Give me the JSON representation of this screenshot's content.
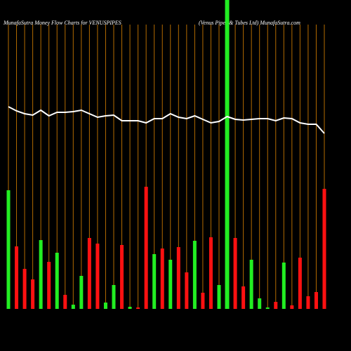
{
  "chart_data": {
    "type": "bar",
    "title": "MunafaSutra  Money Flow  Charts for VENUSPIPES",
    "subtitle": "(Venus Pipes & Tubes Ltd) MunafaSutra.com",
    "guide_color": "#b36b00",
    "values": [
      169,
      89,
      57,
      42,
      98,
      67,
      80,
      20,
      6,
      47,
      101,
      93,
      9,
      34,
      91,
      3,
      2,
      174,
      78,
      86,
      70,
      88,
      52,
      97,
      23,
      102,
      34,
      440,
      101,
      32,
      70,
      15,
      2,
      10,
      66,
      5,
      73,
      18,
      24,
      171
    ],
    "colors": [
      "#22ee22",
      "#ff1111",
      "#ff1111",
      "#ff1111",
      "#22ee22",
      "#ff1111",
      "#22ee22",
      "#ff1111",
      "#22ee22",
      "#22ee22",
      "#ff1111",
      "#ff1111",
      "#22ee22",
      "#22ee22",
      "#ff1111",
      "#22ee22",
      "#ff1111",
      "#ff1111",
      "#22ee22",
      "#ff1111",
      "#22ee22",
      "#ff1111",
      "#ff1111",
      "#22ee22",
      "#ff1111",
      "#ff1111",
      "#22ee22",
      "#22ee22",
      "#ff1111",
      "#ff1111",
      "#22ee22",
      "#22ee22",
      "#22ee22",
      "#ff1111",
      "#22ee22",
      "#ff1111",
      "#ff1111",
      "#ff1111",
      "#ff1111",
      "#ff1111"
    ],
    "line_color": "#ffffff",
    "line_values": [
      288,
      282,
      278,
      276,
      283,
      275,
      280,
      280,
      281,
      283,
      278,
      273,
      275,
      276,
      268,
      268,
      268,
      265,
      271,
      271,
      278,
      273,
      271,
      275,
      270,
      265,
      267,
      274,
      270,
      269,
      270,
      271,
      271,
      268,
      272,
      271,
      265,
      263,
      263,
      250
    ]
  }
}
